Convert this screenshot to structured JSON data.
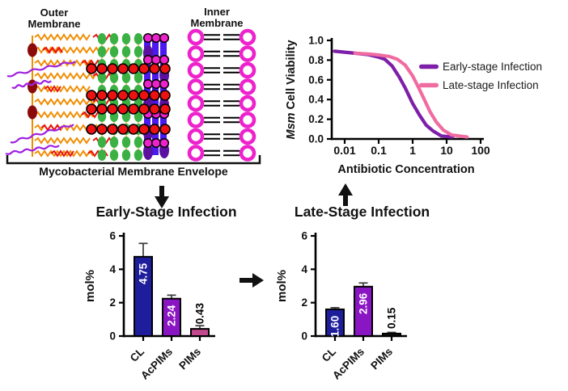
{
  "membrane": {
    "outer_label": "Outer Membrane",
    "inner_label": "Inner Membrane",
    "bracket_label": "Mycobacterial Membrane Envelope"
  },
  "colors": {
    "early_purple": "#7d1fa8",
    "late_pink": "#f06ba0",
    "navy_bar": "#1e1e9c",
    "purple_bar": "#8a15c2",
    "pink_bar": "#c2498e",
    "black_bar": "#141414",
    "membrane_orange": "#f08c00",
    "membrane_red": "#e81010",
    "membrane_green": "#3bb143",
    "membrane_blue": "#4a1aee",
    "membrane_magenta": "#ee22cc",
    "membrane_dark_purple": "#5c10a0",
    "membrane_dark_red": "#8b0a0a",
    "membrane_violet": "#a020e0"
  },
  "chart_data": [
    {
      "id": "viability",
      "type": "line",
      "title": "",
      "xlabel": "Antibiotic Concentration",
      "ylabel": "Msm Cell Viability",
      "ylabel_italic_word": "Msm",
      "ylabel_rest": " Cell Viability",
      "x_scale": "log",
      "x_ticks": [
        0.01,
        0.1,
        1,
        10,
        100
      ],
      "x_tick_labels": [
        "0.01",
        "0.1",
        "1",
        "10",
        "100"
      ],
      "ylim": [
        0.0,
        1.0
      ],
      "y_ticks": [
        0.0,
        0.2,
        0.4,
        0.6,
        0.8,
        1.0
      ],
      "y_tick_labels": [
        "0.0",
        "0.2",
        "0.4",
        "0.6",
        "0.8",
        "1.0"
      ],
      "grid": false,
      "legend_position": "right",
      "series": [
        {
          "name": "Early-stage Infection",
          "color": "#7d1fa8",
          "x": [
            0.005,
            0.01,
            0.02,
            0.05,
            0.1,
            0.15,
            0.25,
            0.4,
            0.6,
            1.0,
            1.6,
            2.5,
            4,
            7,
            15
          ],
          "y": [
            0.89,
            0.88,
            0.87,
            0.855,
            0.83,
            0.81,
            0.74,
            0.63,
            0.52,
            0.36,
            0.24,
            0.14,
            0.08,
            0.03,
            0.02
          ]
        },
        {
          "name": "Late-stage Infection",
          "color": "#f06ba0",
          "x": [
            0.02,
            0.05,
            0.1,
            0.2,
            0.35,
            0.6,
            1.0,
            1.5,
            2.2,
            3.2,
            5,
            8,
            14,
            40
          ],
          "y": [
            0.87,
            0.862,
            0.852,
            0.838,
            0.81,
            0.75,
            0.64,
            0.52,
            0.4,
            0.28,
            0.17,
            0.09,
            0.04,
            0.02
          ]
        }
      ]
    },
    {
      "id": "early",
      "type": "bar",
      "title": "Early-Stage Infection",
      "xlabel": "",
      "ylabel": "mol%",
      "ylim": [
        0,
        6
      ],
      "y_ticks": [
        0,
        2,
        4,
        6
      ],
      "y_tick_labels": [
        "0",
        "2",
        "4",
        "6"
      ],
      "categories": [
        "CL",
        "AcPIMs",
        "PIMs"
      ],
      "values": [
        4.75,
        2.24,
        0.43
      ],
      "errors": [
        0.8,
        0.21,
        0.19
      ],
      "value_labels": [
        "4.75",
        "2.24",
        "0.43"
      ],
      "bar_colors": [
        "#1e1e9c",
        "#8a15c2",
        "#c2498e"
      ],
      "label_colors": [
        "#ffffff",
        "#ffffff",
        "#000000"
      ]
    },
    {
      "id": "late",
      "type": "bar",
      "title": "Late-Stage Infection",
      "xlabel": "",
      "ylabel": "mol%",
      "ylim": [
        0,
        6
      ],
      "y_ticks": [
        0,
        2,
        4,
        6
      ],
      "y_tick_labels": [
        "0",
        "2",
        "4",
        "6"
      ],
      "categories": [
        "CL",
        "AcPIMs",
        "PIMs"
      ],
      "values": [
        1.6,
        2.96,
        0.15
      ],
      "errors": [
        0.1,
        0.22,
        0.07
      ],
      "value_labels": [
        "1.60",
        "2.96",
        "0.15"
      ],
      "bar_colors": [
        "#1e1e9c",
        "#8a15c2",
        "#141414"
      ],
      "label_colors": [
        "#ffffff",
        "#ffffff",
        "#000000"
      ]
    }
  ]
}
